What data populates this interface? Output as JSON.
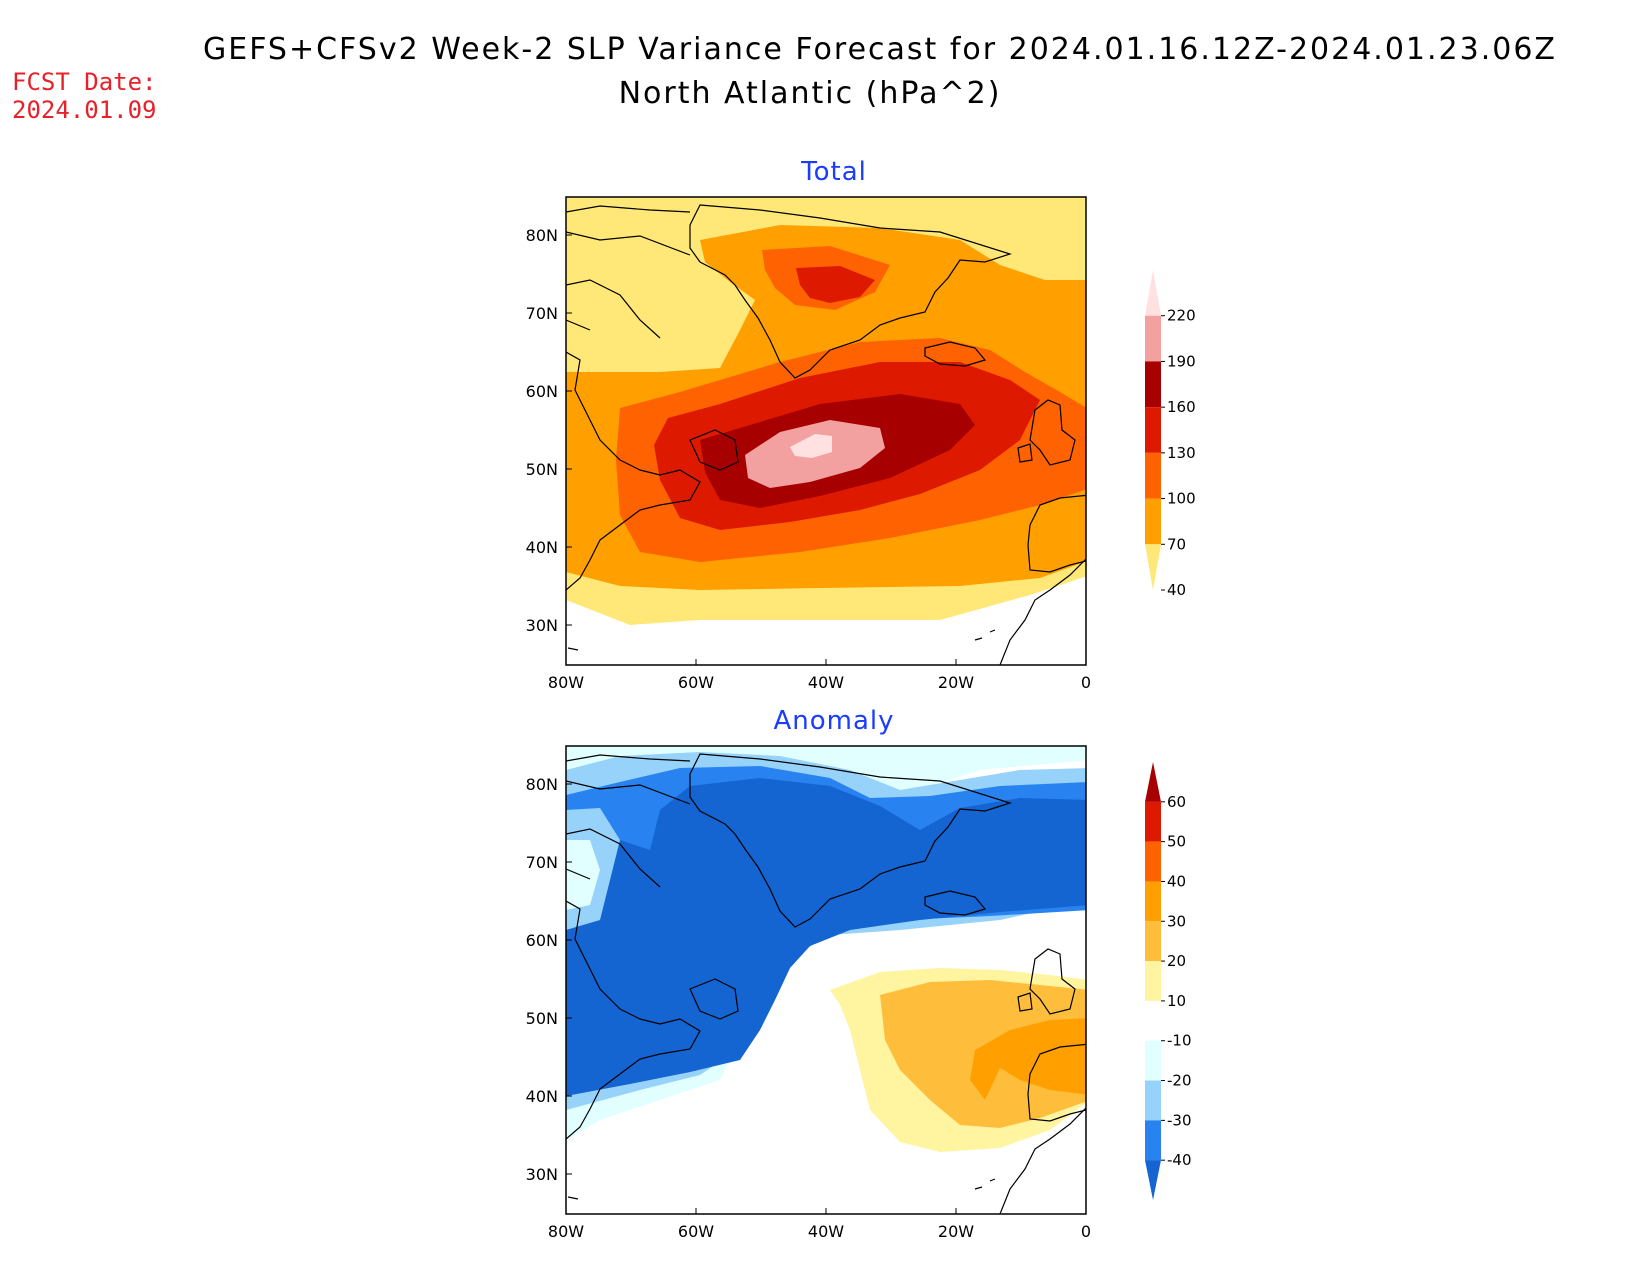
{
  "header": {
    "title": "GEFS+CFSv2 Week-2 SLP Variance Forecast for 2024.01.16.12Z-2024.01.23.06Z",
    "subtitle": "North Atlantic (hPa^2)",
    "fcst_label": "FCST Date:",
    "fcst_date": "2024.01.09"
  },
  "colors": {
    "title_accent": "#1a3cff",
    "fcst": "#e8202a"
  },
  "lat_labels": [
    "80N",
    "70N",
    "60N",
    "50N",
    "40N",
    "30N"
  ],
  "lon_labels": [
    "80W",
    "60W",
    "40W",
    "20W",
    "0"
  ],
  "panels": [
    {
      "title": "Total",
      "colorbar": {
        "levels": [
          "220",
          "190",
          "160",
          "130",
          "100",
          "70",
          "40"
        ],
        "colors": [
          "#ffe1e1",
          "#f3a0a0",
          "#a70000",
          "#dd1a00",
          "#ff6200",
          "#ffa000",
          "#ffe878"
        ]
      }
    },
    {
      "title": "Anomaly",
      "colorbar": {
        "levels": [
          "60",
          "50",
          "40",
          "30",
          "20",
          "10",
          "-10",
          "-20",
          "-30",
          "-40"
        ],
        "colors": [
          "#a70000",
          "#dd1a00",
          "#ff6200",
          "#ffa000",
          "#ffbd3c",
          "#fff5a0",
          "#ffffff",
          "#e1ffff",
          "#96d2fa",
          "#2882f0",
          "#1464d2"
        ]
      }
    }
  ]
}
